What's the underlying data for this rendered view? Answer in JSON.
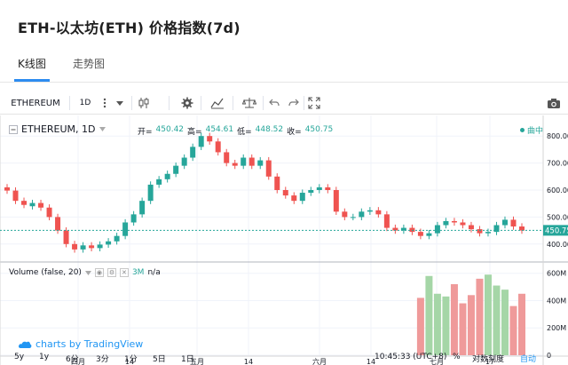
{
  "page": {
    "title": "ETH-以太坊(ETH) 价格指数(7d)"
  },
  "tabs": [
    {
      "label": "K线图",
      "active": true
    },
    {
      "label": "走势图",
      "active": false
    }
  ],
  "toolbar": {
    "symbol": "ETHEREUM",
    "interval": "1D",
    "icons": [
      "more-icon",
      "dropdown-icon",
      "candles-icon",
      "gear-icon",
      "indicators-icon",
      "compare-icon",
      "undo-icon",
      "redo-icon",
      "fullscreen-icon",
      "camera-icon"
    ]
  },
  "legend": {
    "title": "ETHEREUM, 1D",
    "open_label": "开=",
    "open": "450.42",
    "high_label": "高=",
    "high": "454.61",
    "low_label": "低=",
    "low": "448.52",
    "close_label": "收=",
    "close": "450.75",
    "series_label": "曲中"
  },
  "volume_legend": {
    "label": "Volume (false, 20)",
    "value": "3M",
    "na": "n/a"
  },
  "watermark": "charts by TradingView",
  "price_axis": {
    "ticks": [
      "800.00",
      "700.00",
      "600.00",
      "500.00",
      "400.00"
    ],
    "last_price": "450.75"
  },
  "volume_axis": {
    "ticks": [
      "600M",
      "400M",
      "200M",
      "0"
    ]
  },
  "time_axis": {
    "ticks": [
      "四月",
      "14",
      "五月",
      "14",
      "六月",
      "14",
      "七月",
      "17"
    ]
  },
  "footer": {
    "ranges": [
      "5y",
      "1y",
      "6分",
      "3分",
      "1分",
      "5日",
      "1日"
    ],
    "clock": "10:45:33 (UTC+8)",
    "percent": "%",
    "log": "对数刻度",
    "auto": "自动"
  },
  "colors": {
    "up": "#26a69a",
    "down": "#ef5350",
    "accent": "#2196f3",
    "volume_up": "#a5d6a7",
    "volume_down": "#ef9a9a"
  },
  "chart_data": {
    "type": "candlestick",
    "x": [
      "2018-03-21",
      "2018-03-23",
      "2018-03-25",
      "2018-03-27",
      "2018-03-29",
      "2018-03-31",
      "2018-04-02",
      "2018-04-04",
      "2018-04-06",
      "2018-04-08",
      "2018-04-10",
      "2018-04-12",
      "2018-04-14",
      "2018-04-16",
      "2018-04-18",
      "2018-04-20",
      "2018-04-22",
      "2018-04-24",
      "2018-04-26",
      "2018-04-28",
      "2018-04-30",
      "2018-05-02",
      "2018-05-04",
      "2018-05-06",
      "2018-05-08",
      "2018-05-10",
      "2018-05-12",
      "2018-05-14",
      "2018-05-16",
      "2018-05-18",
      "2018-05-20",
      "2018-05-22",
      "2018-05-24",
      "2018-05-26",
      "2018-05-28",
      "2018-05-30",
      "2018-06-01",
      "2018-06-03",
      "2018-06-05",
      "2018-06-07",
      "2018-06-09",
      "2018-06-11",
      "2018-06-13",
      "2018-06-15",
      "2018-06-17",
      "2018-06-19",
      "2018-06-21",
      "2018-06-23",
      "2018-06-25",
      "2018-06-27",
      "2018-06-29",
      "2018-07-01",
      "2018-07-03",
      "2018-07-05",
      "2018-07-07",
      "2018-07-09",
      "2018-07-11",
      "2018-07-13",
      "2018-07-15",
      "2018-07-17",
      "2018-07-19",
      "2018-07-21"
    ],
    "open": [
      610,
      598,
      560,
      540,
      552,
      535,
      500,
      450,
      400,
      380,
      395,
      385,
      398,
      410,
      430,
      480,
      510,
      560,
      620,
      640,
      660,
      690,
      720,
      760,
      800,
      780,
      740,
      700,
      690,
      720,
      690,
      710,
      650,
      600,
      580,
      560,
      590,
      600,
      610,
      600,
      520,
      500,
      500,
      520,
      525,
      510,
      460,
      450,
      460,
      445,
      430,
      440,
      470,
      485,
      480,
      470,
      455,
      440,
      445,
      470,
      490,
      465
    ],
    "close": [
      598,
      560,
      545,
      552,
      535,
      500,
      450,
      400,
      380,
      395,
      385,
      398,
      410,
      430,
      480,
      510,
      560,
      620,
      640,
      660,
      690,
      720,
      760,
      800,
      780,
      740,
      700,
      690,
      720,
      690,
      710,
      650,
      600,
      580,
      560,
      590,
      600,
      610,
      600,
      520,
      500,
      500,
      520,
      525,
      510,
      460,
      450,
      460,
      445,
      430,
      440,
      470,
      485,
      480,
      470,
      455,
      440,
      445,
      470,
      490,
      465,
      450
    ],
    "y_range": [
      350,
      850
    ],
    "volume": [
      0,
      0,
      0,
      0,
      0,
      0,
      0,
      0,
      0,
      0,
      0,
      0,
      0,
      0,
      0,
      0,
      0,
      0,
      0,
      0,
      0,
      0,
      0,
      0,
      0,
      0,
      0,
      0,
      0,
      0,
      0,
      0,
      0,
      0,
      0,
      0,
      0,
      0,
      0,
      0,
      0,
      0,
      0,
      0,
      0,
      0,
      0,
      0,
      0,
      420,
      580,
      450,
      430,
      520,
      380,
      440,
      560,
      590,
      510,
      480,
      360,
      450
    ],
    "volume_range": [
      0,
      650
    ]
  }
}
